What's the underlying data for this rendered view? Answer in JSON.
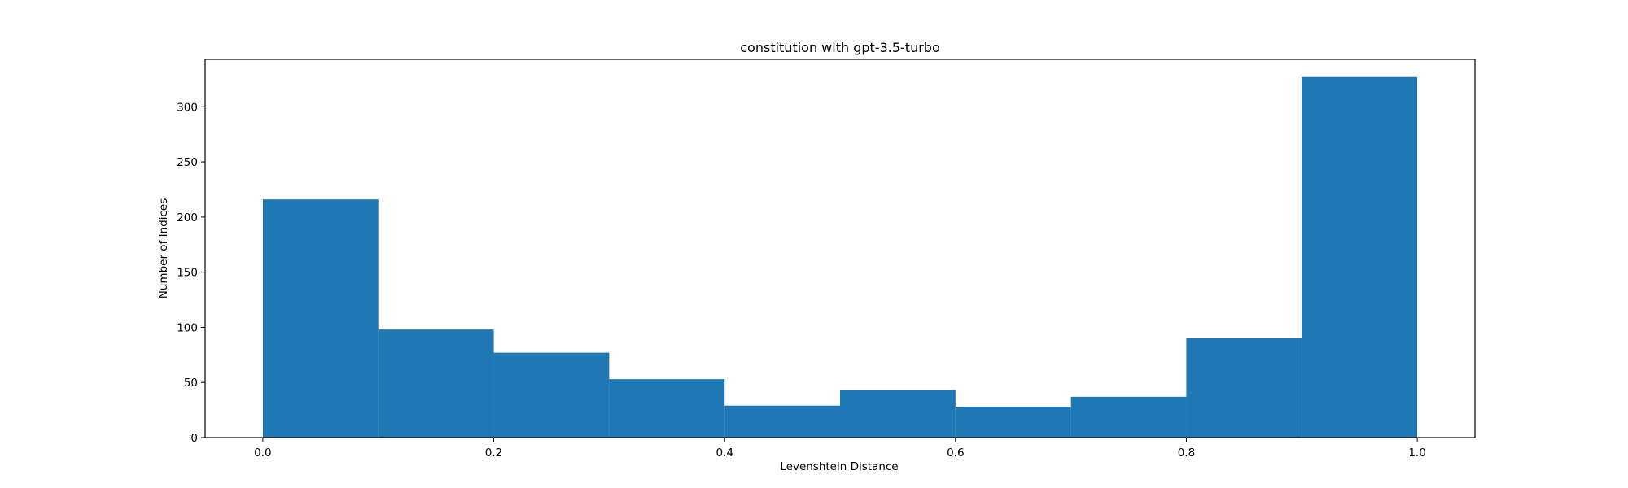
{
  "chart_data": {
    "type": "bar",
    "title": "constitution with gpt-3.5-turbo",
    "xlabel": "Levenshtein Distance",
    "ylabel": "Number of Indices",
    "xlim": [
      -0.05,
      1.05
    ],
    "ylim": [
      0,
      343
    ],
    "bins": [
      {
        "start": 0.0,
        "end": 0.1,
        "count": 216
      },
      {
        "start": 0.1,
        "end": 0.2,
        "count": 98
      },
      {
        "start": 0.2,
        "end": 0.3,
        "count": 77
      },
      {
        "start": 0.3,
        "end": 0.4,
        "count": 53
      },
      {
        "start": 0.4,
        "end": 0.5,
        "count": 29
      },
      {
        "start": 0.5,
        "end": 0.6,
        "count": 43
      },
      {
        "start": 0.6,
        "end": 0.7,
        "count": 28
      },
      {
        "start": 0.7,
        "end": 0.8,
        "count": 37
      },
      {
        "start": 0.8,
        "end": 0.9,
        "count": 90
      },
      {
        "start": 0.9,
        "end": 1.0,
        "count": 327
      }
    ],
    "xticks": [
      0.0,
      0.2,
      0.4,
      0.6,
      0.8,
      1.0
    ],
    "xtick_labels": [
      "0.0",
      "0.2",
      "0.4",
      "0.6",
      "0.8",
      "1.0"
    ],
    "yticks": [
      0,
      50,
      100,
      150,
      200,
      250,
      300
    ],
    "ytick_labels": [
      "0",
      "50",
      "100",
      "150",
      "200",
      "250",
      "300"
    ],
    "grid": false,
    "bar_color": "#1f77b4"
  }
}
